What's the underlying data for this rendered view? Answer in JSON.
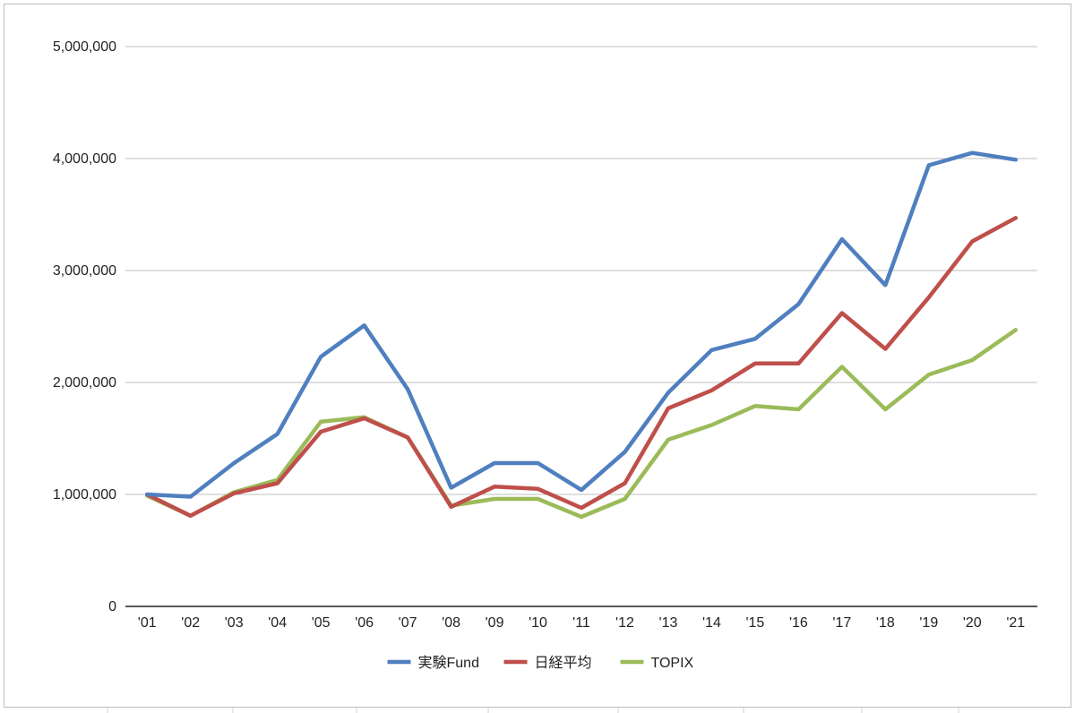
{
  "chart_data": {
    "type": "line",
    "title": "",
    "xlabel": "",
    "ylabel": "",
    "ylim": [
      0,
      5000000
    ],
    "yticks": [
      0,
      1000000,
      2000000,
      3000000,
      4000000,
      5000000
    ],
    "ytick_labels": [
      "0",
      "1,000,000",
      "2,000,000",
      "3,000,000",
      "4,000,000",
      "5,000,000"
    ],
    "categories": [
      "'01",
      "'02",
      "'03",
      "'04",
      "'05",
      "'06",
      "'07",
      "'08",
      "'09",
      "'10",
      "'11",
      "'12",
      "'13",
      "'14",
      "'15",
      "'16",
      "'17",
      "'18",
      "'19",
      "'20",
      "'21"
    ],
    "grid": true,
    "legend_position": "bottom",
    "series": [
      {
        "name": "実験Fund",
        "color": "#4f7fbf",
        "values": [
          1000000,
          980000,
          1280000,
          1540000,
          2230000,
          2510000,
          1940000,
          1060000,
          1280000,
          1280000,
          1040000,
          1380000,
          1910000,
          2290000,
          2390000,
          2700000,
          3280000,
          2870000,
          3940000,
          4050000,
          3990000
        ]
      },
      {
        "name": "日経平均",
        "color": "#bf4f4b",
        "values": [
          1000000,
          810000,
          1010000,
          1100000,
          1560000,
          1680000,
          1510000,
          890000,
          1070000,
          1050000,
          880000,
          1100000,
          1770000,
          1930000,
          2170000,
          2170000,
          2620000,
          2300000,
          2760000,
          3260000,
          3470000
        ]
      },
      {
        "name": "TOPIX",
        "color": "#9bbb59",
        "values": [
          990000,
          810000,
          1020000,
          1130000,
          1650000,
          1690000,
          1510000,
          900000,
          960000,
          960000,
          800000,
          960000,
          1490000,
          1620000,
          1790000,
          1760000,
          2140000,
          1760000,
          2070000,
          2200000,
          2470000
        ]
      }
    ]
  }
}
